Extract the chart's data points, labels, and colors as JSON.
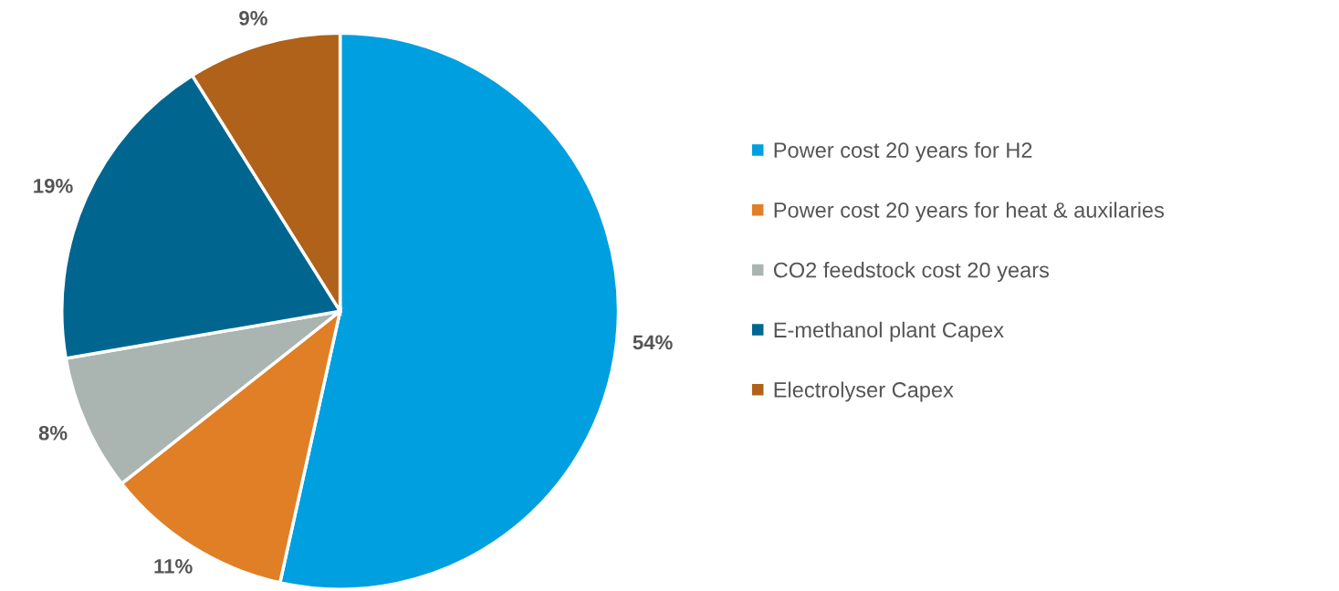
{
  "chart_data": {
    "type": "pie",
    "categories": [
      "Power cost 20 years for H2",
      "Power cost 20 years for heat & auxilaries",
      "CO2 feedstock cost 20 years",
      "E-methanol plant Capex",
      "Electrolyser Capex"
    ],
    "values": [
      54,
      11,
      8,
      19,
      9
    ],
    "colors": [
      "#009fe0",
      "#e07f26",
      "#aab4b0",
      "#006690",
      "#b0611a"
    ],
    "value_labels": [
      "54%",
      "11%",
      "8%",
      "19%",
      "9%"
    ],
    "legend": "right"
  }
}
